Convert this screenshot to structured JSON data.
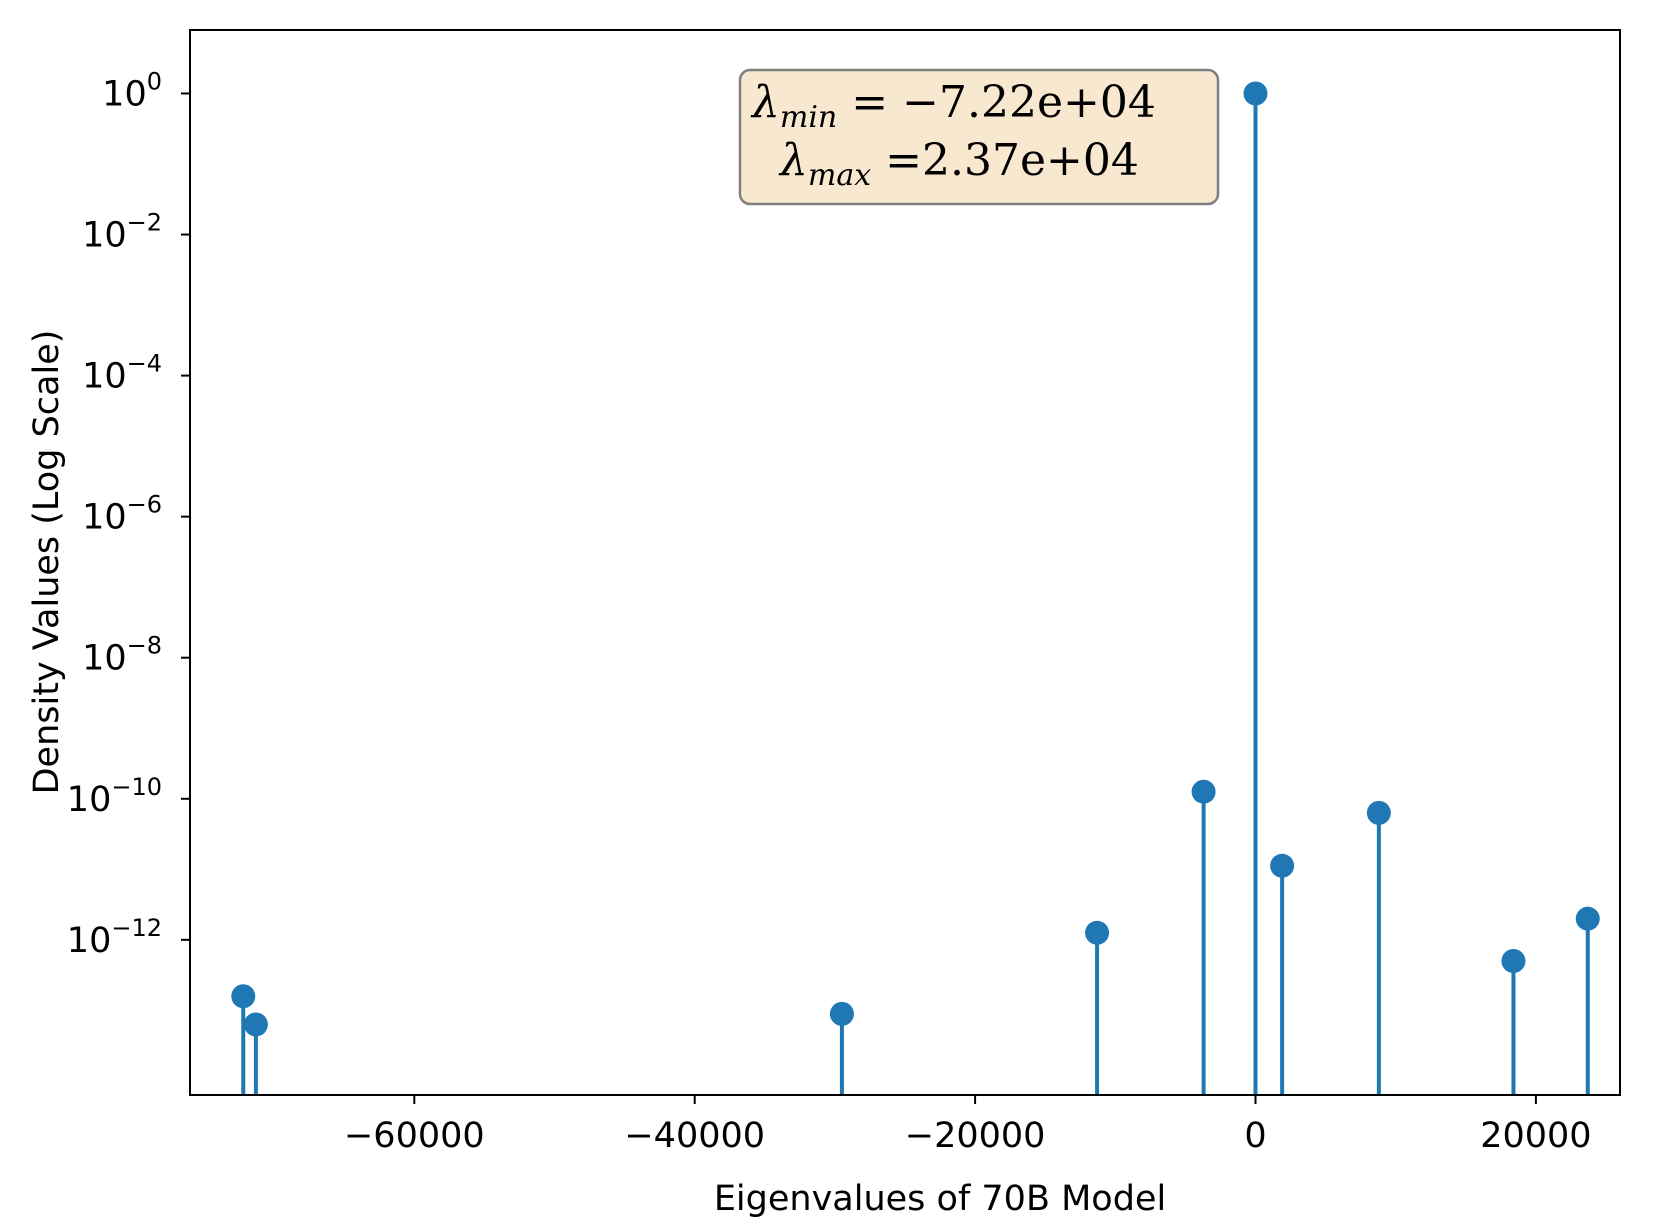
{
  "chart_data": {
    "type": "stem",
    "xlabel": "Eigenvalues of 70B Model",
    "ylabel": "Density Values (Log Scale)",
    "yscale": "log",
    "xlim": [
      -76000,
      26000
    ],
    "ylim_log10": [
      -14.2,
      0.9
    ],
    "x_ticks": [
      -60000,
      -40000,
      -20000,
      0,
      20000
    ],
    "x_tick_labels": [
      "−60000",
      "−40000",
      "−20000",
      "0",
      "20000"
    ],
    "y_ticks_log10": [
      0,
      -2,
      -4,
      -6,
      -8,
      -10,
      -12
    ],
    "y_tick_labels": [
      {
        "base": "10",
        "exp": "0"
      },
      {
        "base": "10",
        "exp": "−2"
      },
      {
        "base": "10",
        "exp": "−4"
      },
      {
        "base": "10",
        "exp": "−6"
      },
      {
        "base": "10",
        "exp": "−8"
      },
      {
        "base": "10",
        "exp": "−10"
      },
      {
        "base": "10",
        "exp": "−12"
      }
    ],
    "color": "#1f77b4",
    "points": [
      {
        "x": -72200,
        "log10_y": -12.8
      },
      {
        "x": -71300,
        "log10_y": -13.2
      },
      {
        "x": -29500,
        "log10_y": -13.05
      },
      {
        "x": -11300,
        "log10_y": -11.9
      },
      {
        "x": -3700,
        "log10_y": -9.9
      },
      {
        "x": 0,
        "log10_y": 0
      },
      {
        "x": 1900,
        "log10_y": -10.95
      },
      {
        "x": 8800,
        "log10_y": -10.2
      },
      {
        "x": 18400,
        "log10_y": -12.3
      },
      {
        "x": 23700,
        "log10_y": -11.7
      }
    ],
    "annotation": {
      "min_symbol": "λ",
      "min_sub": "min",
      "min_text": " = −7.22e+04",
      "max_symbol": "λ",
      "max_sub": "max",
      "max_text": " =2.37e+04",
      "box_color": "#f9e8d0",
      "box_edge": "#7f7f7f"
    }
  }
}
